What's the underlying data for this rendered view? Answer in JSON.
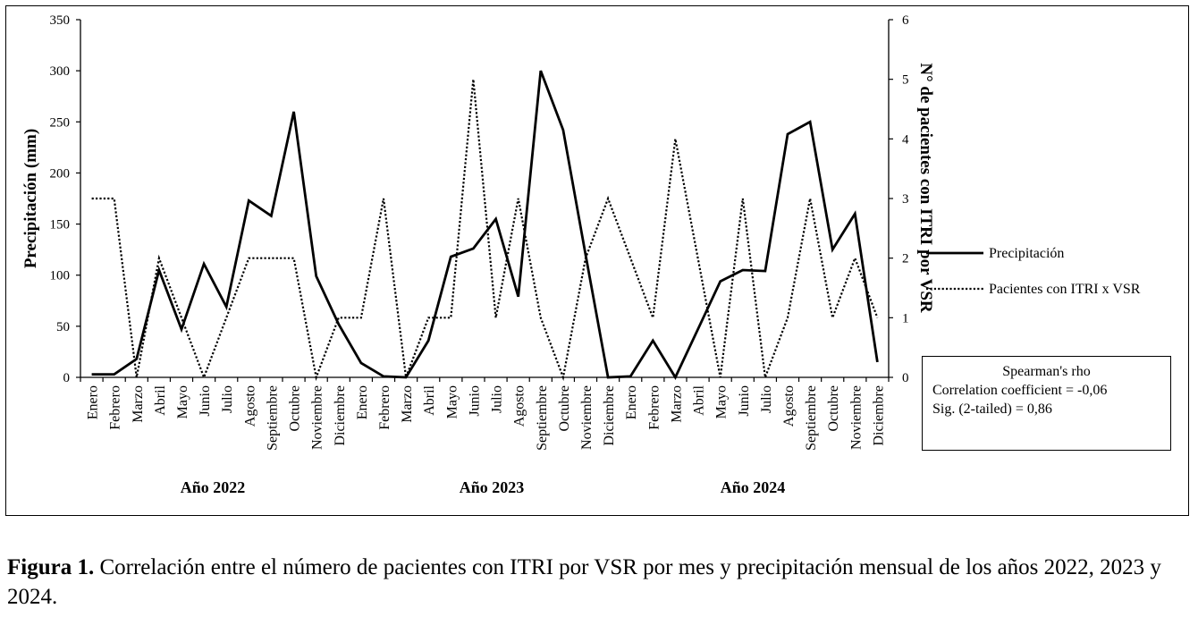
{
  "chart_data": {
    "type": "line",
    "categories": [
      "Enero",
      "Febrero",
      "Marzo",
      "Abril",
      "Mayo",
      "Junio",
      "Julio",
      "Agosto",
      "Septiembre",
      "Octubre",
      "Noviembre",
      "Diciembre",
      "Enero",
      "Febrero",
      "Marzo",
      "Abril",
      "Mayo",
      "Junio",
      "Julio",
      "Agosto",
      "Septiembre",
      "Octubre",
      "Noviembre",
      "Diciembre",
      "Enero",
      "Febrero",
      "Marzo",
      "Abril",
      "Mayo",
      "Junio",
      "Julio",
      "Agosto",
      "Septiembre",
      "Octubre",
      "Noviembre",
      "Diciembre"
    ],
    "year_groups": [
      "Año 2022",
      "Año 2023",
      "Año 2024"
    ],
    "ylabel": "Precipitación (mm)",
    "y2label": "N° de pacientes con ITRI por VSR",
    "ylim": [
      0,
      350
    ],
    "y2lim": [
      0,
      6
    ],
    "y_ticks": [
      0,
      50,
      100,
      150,
      200,
      250,
      300,
      350
    ],
    "y2_ticks": [
      0,
      1,
      2,
      3,
      4,
      5,
      6
    ],
    "legend_position": "right",
    "series": [
      {
        "name": "Precipitación",
        "axis": "left",
        "style": "solid",
        "color": "#000000",
        "values": [
          3,
          3,
          18,
          105,
          47,
          111,
          69,
          173,
          158,
          260,
          99,
          52,
          14,
          1,
          0,
          36,
          118,
          126,
          155,
          79,
          300,
          242,
          120,
          0,
          1,
          36,
          0,
          47,
          94,
          105,
          104,
          238,
          250,
          125,
          160,
          15
        ]
      },
      {
        "name": "Pacientes con ITRI x VSR",
        "axis": "right",
        "style": "dotted",
        "color": "#000000",
        "values": [
          3,
          3,
          0,
          2,
          1,
          0,
          1,
          2,
          2,
          2,
          0,
          1,
          1,
          3,
          0,
          1,
          1,
          5,
          1,
          3,
          1,
          0,
          2,
          3,
          2,
          1,
          4,
          2,
          0,
          3,
          0,
          1,
          3,
          1,
          2,
          1
        ]
      }
    ]
  },
  "stats": {
    "title": "Spearman's  rho",
    "line1": "Correlation coefficient = -0,06",
    "line2": "Sig. (2-tailed) = 0,86"
  },
  "caption": {
    "label": "Figura 1.",
    "text": " Correlación entre el número de pacientes con ITRI por VSR por mes y precipitación mensual de los años 2022, 2023 y 2024."
  }
}
